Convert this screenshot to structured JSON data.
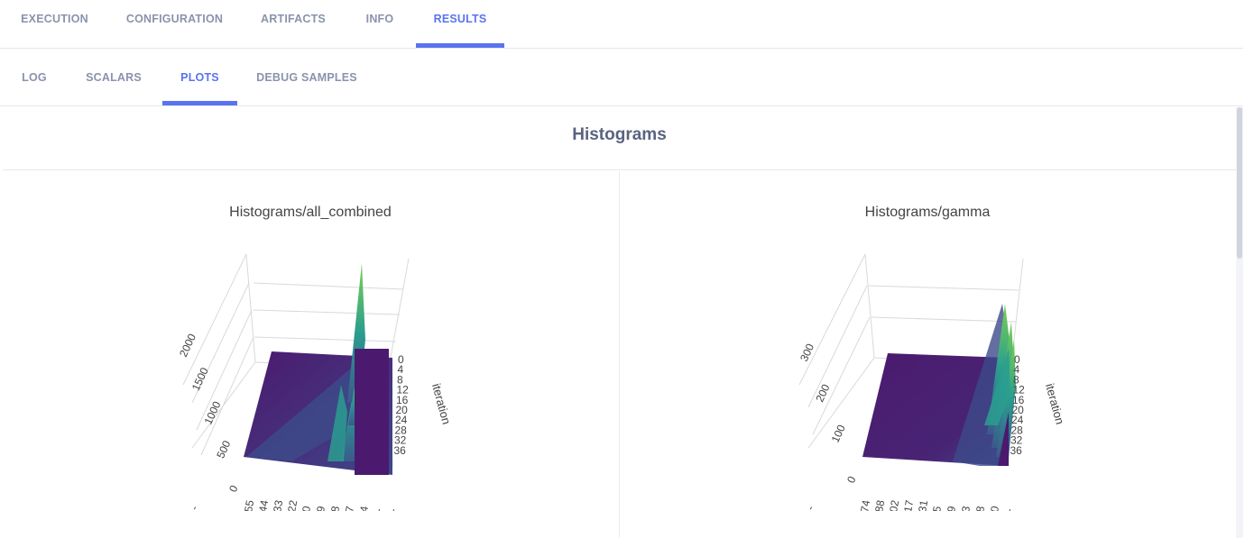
{
  "top_tabs": [
    {
      "label": "EXECUTION",
      "active": false
    },
    {
      "label": "CONFIGURATION",
      "active": false
    },
    {
      "label": "ARTIFACTS",
      "active": false
    },
    {
      "label": "INFO",
      "active": false
    },
    {
      "label": "RESULTS",
      "active": true
    }
  ],
  "sub_tabs": [
    {
      "label": "LOG",
      "active": false
    },
    {
      "label": "SCALARS",
      "active": false
    },
    {
      "label": "PLOTS",
      "active": true
    },
    {
      "label": "DEBUG SAMPLES",
      "active": false
    }
  ],
  "section_title": "Histograms",
  "colors": {
    "accent": "#5a74f0",
    "surface_low": "#4b1a6e",
    "surface_mid": "#3b5a8c",
    "surface_high": "#35b779"
  },
  "plots": [
    {
      "title": "Histograms/all_combined",
      "chart_data": {
        "type": "surface",
        "title": "Histograms/all_combined",
        "y_axis": {
          "label": "iteration",
          "ticks": [
            "0",
            "4",
            "8",
            "12",
            "16",
            "20",
            "24",
            "28",
            "32",
            "36"
          ]
        },
        "z_axis": {
          "ticks": [
            "0",
            "500",
            "1000",
            "1500",
            "2000"
          ],
          "extra_tick": "-"
        },
        "x_axis": {
          "ticks": [
            "55",
            "44",
            "33",
            "22",
            "0",
            "9",
            "8",
            "7",
            "4",
            "-",
            "-"
          ]
        }
      }
    },
    {
      "title": "Histograms/gamma",
      "chart_data": {
        "type": "surface",
        "title": "Histograms/gamma",
        "y_axis": {
          "label": "iteration",
          "ticks": [
            "0",
            "4",
            "8",
            "12",
            "16",
            "20",
            "24",
            "28",
            "32",
            "36"
          ]
        },
        "z_axis": {
          "ticks": [
            "0",
            "100",
            "200",
            "300"
          ],
          "extra_tick": "-"
        },
        "x_axis": {
          "ticks": [
            "74",
            "88",
            "02",
            "17",
            "31",
            "5",
            "9",
            "3",
            "8",
            "0",
            "-"
          ]
        }
      }
    }
  ]
}
